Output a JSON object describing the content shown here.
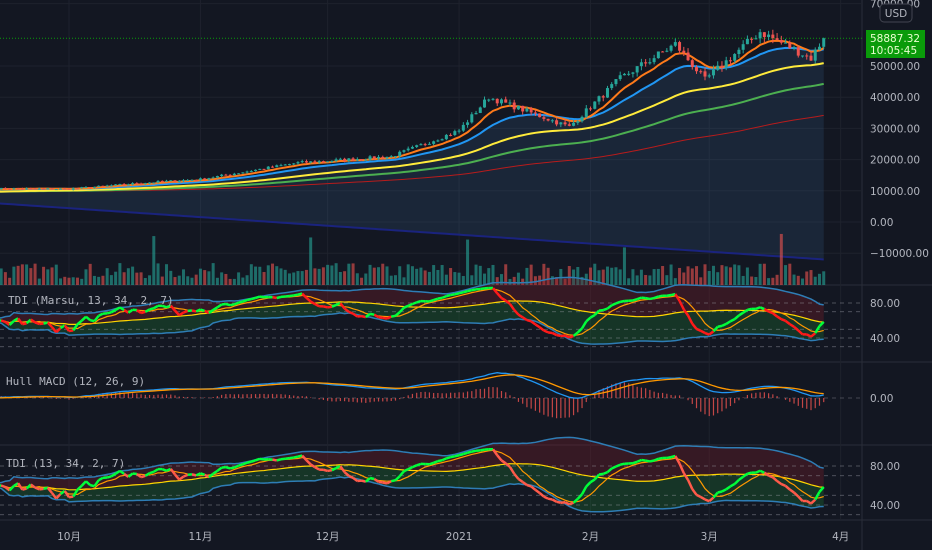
{
  "chart_data": {
    "type": "candlestick",
    "currency": "USD",
    "last_price": "58887.32",
    "countdown": "10:05:45",
    "price_ticks": [
      "70000.00",
      "50000.00",
      "40000.00",
      "30000.00",
      "20000.00",
      "10000.00",
      "0.00",
      "−10000.00"
    ],
    "price_tick_values": [
      70000,
      50000,
      40000,
      30000,
      20000,
      10000,
      0,
      -10000
    ],
    "ylim": [
      -13000,
      71000
    ],
    "x_ticks": [
      {
        "label": "10月",
        "date": "2020-10-01"
      },
      {
        "label": "11月",
        "date": "2020-11-01"
      },
      {
        "label": "12月",
        "date": "2020-12-01"
      },
      {
        "label": "2021",
        "date": "2021-01-01"
      },
      {
        "label": "2月",
        "date": "2021-02-01"
      },
      {
        "label": "3月",
        "date": "2021-03-01"
      },
      {
        "label": "4月",
        "date": "2021-04-01"
      }
    ],
    "xlim": [
      "2020-09-14",
      "2021-04-06"
    ],
    "close_keypoints": [
      [
        "2020-09-14",
        10700
      ],
      [
        "2020-10-01",
        10600
      ],
      [
        "2020-10-21",
        12800
      ],
      [
        "2020-11-01",
        13700
      ],
      [
        "2020-11-24",
        19000
      ],
      [
        "2020-12-01",
        19600
      ],
      [
        "2020-12-16",
        21000
      ],
      [
        "2021-01-01",
        29300
      ],
      [
        "2021-01-08",
        40000
      ],
      [
        "2021-01-27",
        30500
      ],
      [
        "2021-02-08",
        46000
      ],
      [
        "2021-02-21",
        57000
      ],
      [
        "2021-02-28",
        45500
      ],
      [
        "2021-03-13",
        61000
      ],
      [
        "2021-03-25",
        52500
      ],
      [
        "2021-03-28",
        58887.32
      ]
    ],
    "moving_averages": [
      {
        "period": 9,
        "color": "#ff7a1a"
      },
      {
        "period": 21,
        "color": "#2196f3"
      },
      {
        "period": 55,
        "color": "#ffeb3b"
      },
      {
        "period": 100,
        "color": "#4caf50"
      },
      {
        "period": 200,
        "color": "#b71c1c"
      }
    ],
    "colors": {
      "up": "#26a69a",
      "down": "#ef5350",
      "tdi_up": "#00ff3a",
      "tdi_down": "#ff1a1a",
      "tag": "#0a9b0a",
      "bands": "#2e7db5",
      "signal": "#ff9800",
      "baseline": "#1a237e"
    },
    "panes": [
      {
        "title": "TDI (Marsu, 13, 34, 2, 7)",
        "ticks": [
          "80.00",
          "40.00"
        ],
        "levels": [
          80,
          40
        ]
      },
      {
        "title": "Hull MACD (12, 26, 9)",
        "ticks": [
          "0.00"
        ],
        "levels": [
          0
        ]
      },
      {
        "title": "TDI (13, 34, 2, 7)",
        "ticks": [
          "80.00",
          "40.00"
        ],
        "levels": [
          80,
          40
        ]
      }
    ]
  }
}
